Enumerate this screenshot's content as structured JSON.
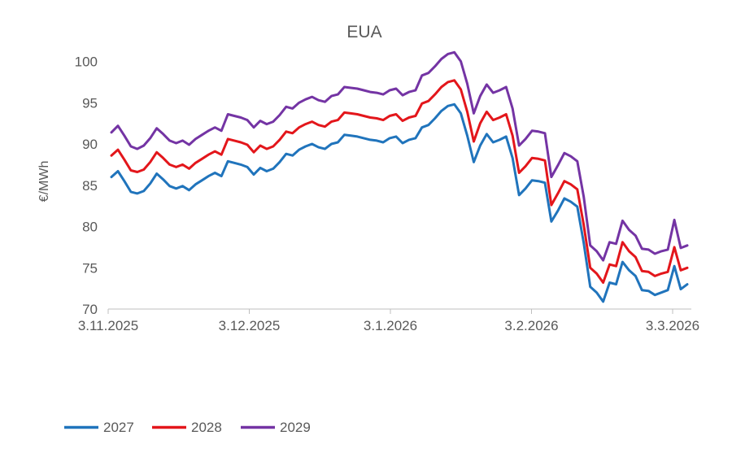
{
  "chart_data": {
    "type": "line",
    "title": "EUA",
    "ylabel": "€/MWh",
    "ylim": [
      70,
      100
    ],
    "ytick_step": 5,
    "y_tick_labels": [
      "70",
      "75",
      "80",
      "85",
      "90",
      "95",
      "100"
    ],
    "x_tick_labels": [
      "3.11.2025",
      "3.12.2025",
      "3.1.2026",
      "3.2.2026",
      "3.3.2026"
    ],
    "grid": "off",
    "legend_position": "bottom-left",
    "colors": {
      "text": "#595959",
      "axis": "#bfbfbf"
    },
    "series": [
      {
        "name": "2027",
        "color": "#2074bc",
        "values": [
          86.0,
          86.7,
          85.5,
          84.2,
          84.0,
          84.3,
          85.2,
          86.4,
          85.7,
          84.9,
          84.6,
          84.9,
          84.4,
          85.1,
          85.6,
          86.1,
          86.5,
          86.1,
          87.9,
          87.7,
          87.5,
          87.2,
          86.3,
          87.1,
          86.7,
          87.0,
          87.8,
          88.8,
          88.6,
          89.3,
          89.7,
          90.0,
          89.6,
          89.4,
          90.0,
          90.2,
          91.1,
          91.0,
          90.9,
          90.7,
          90.5,
          90.4,
          90.2,
          90.7,
          90.9,
          90.1,
          90.5,
          90.7,
          92.0,
          92.3,
          93.1,
          94.0,
          94.6,
          94.8,
          93.7,
          91.0,
          87.8,
          89.8,
          91.2,
          90.2,
          90.5,
          90.9,
          88.3,
          83.8,
          84.6,
          85.6,
          85.5,
          85.3,
          80.6,
          81.9,
          83.4,
          83.0,
          82.4,
          78.0,
          72.7,
          72.0,
          70.9,
          73.2,
          73.0,
          75.7,
          74.7,
          74.0,
          72.3,
          72.2,
          71.7,
          72.0,
          72.3,
          75.2,
          72.4,
          73.0
        ]
      },
      {
        "name": "2028",
        "color": "#e3161b",
        "values": [
          88.6,
          89.3,
          88.1,
          86.8,
          86.6,
          86.9,
          87.8,
          89.0,
          88.3,
          87.5,
          87.2,
          87.5,
          87.0,
          87.7,
          88.2,
          88.7,
          89.1,
          88.7,
          90.6,
          90.4,
          90.2,
          89.9,
          89.0,
          89.8,
          89.4,
          89.7,
          90.5,
          91.5,
          91.3,
          92.0,
          92.4,
          92.7,
          92.3,
          92.1,
          92.7,
          92.9,
          93.8,
          93.7,
          93.6,
          93.4,
          93.2,
          93.1,
          92.9,
          93.4,
          93.6,
          92.8,
          93.2,
          93.4,
          94.9,
          95.2,
          96.0,
          96.9,
          97.5,
          97.7,
          96.6,
          93.9,
          90.3,
          92.5,
          93.9,
          92.9,
          93.2,
          93.6,
          91.0,
          86.5,
          87.3,
          88.3,
          88.2,
          88.0,
          82.6,
          84.0,
          85.5,
          85.1,
          84.5,
          80.2,
          75.0,
          74.3,
          73.2,
          75.4,
          75.2,
          78.1,
          77.0,
          76.3,
          74.6,
          74.5,
          74.0,
          74.3,
          74.5,
          77.5,
          74.7,
          75.0
        ]
      },
      {
        "name": "2029",
        "color": "#7434a4",
        "values": [
          91.4,
          92.2,
          91.0,
          89.7,
          89.4,
          89.8,
          90.7,
          91.9,
          91.2,
          90.4,
          90.1,
          90.4,
          89.9,
          90.6,
          91.1,
          91.6,
          92.0,
          91.6,
          93.6,
          93.4,
          93.2,
          92.9,
          92.0,
          92.8,
          92.4,
          92.7,
          93.5,
          94.5,
          94.3,
          95.0,
          95.4,
          95.7,
          95.3,
          95.1,
          95.8,
          96.0,
          96.9,
          96.8,
          96.7,
          96.5,
          96.3,
          96.2,
          96.0,
          96.5,
          96.7,
          95.9,
          96.3,
          96.5,
          98.3,
          98.6,
          99.4,
          100.3,
          100.9,
          101.1,
          100.0,
          97.3,
          93.7,
          95.8,
          97.2,
          96.2,
          96.5,
          96.9,
          94.3,
          89.8,
          90.6,
          91.6,
          91.5,
          91.3,
          86.0,
          87.4,
          88.9,
          88.5,
          87.9,
          83.6,
          77.7,
          77.0,
          75.9,
          78.1,
          77.9,
          80.7,
          79.6,
          78.9,
          77.3,
          77.2,
          76.7,
          77.0,
          77.2,
          80.8,
          77.4,
          77.7
        ]
      }
    ]
  }
}
